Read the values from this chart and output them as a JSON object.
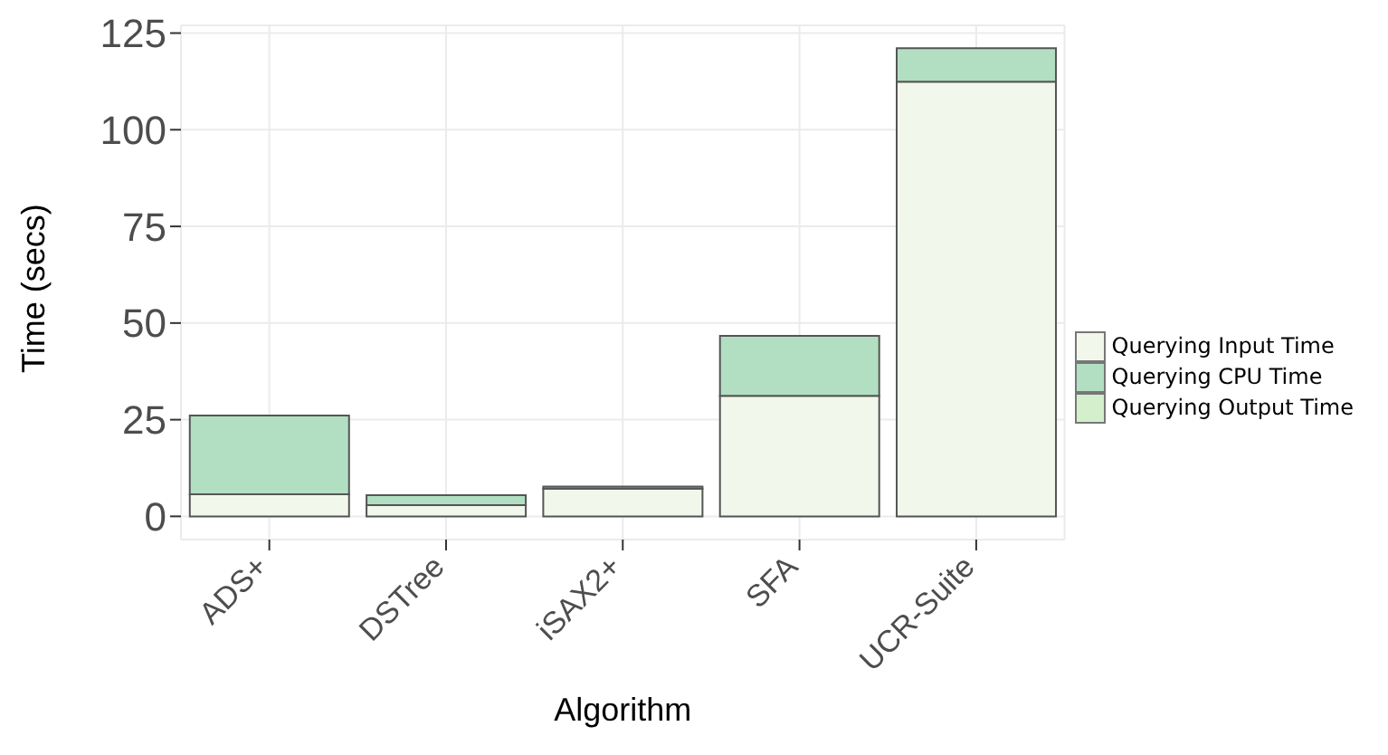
{
  "chart_data": {
    "type": "bar",
    "stacked": true,
    "xlabel": "Algorithm",
    "ylabel": "Time (secs)",
    "categories": [
      "ADS+",
      "DSTree",
      "iSAX2+",
      "SFA",
      "UCR-Suite"
    ],
    "series": [
      {
        "name": "Querying Input Time",
        "color": "#f1f8eb",
        "values": [
          5.7,
          2.9,
          7.2,
          31.2,
          112.4
        ]
      },
      {
        "name": "Querying CPU Time",
        "color": "#b2dfc1",
        "values": [
          20.4,
          2.6,
          0.5,
          15.5,
          8.7
        ]
      },
      {
        "name": "Querying Output Time",
        "color": "#d4efcc",
        "values": [
          0,
          0,
          0,
          0,
          0
        ]
      }
    ],
    "ylim": [
      -6,
      127
    ],
    "yticks": [
      0,
      25,
      50,
      75,
      100,
      125
    ],
    "grid": true,
    "legend": "right"
  }
}
